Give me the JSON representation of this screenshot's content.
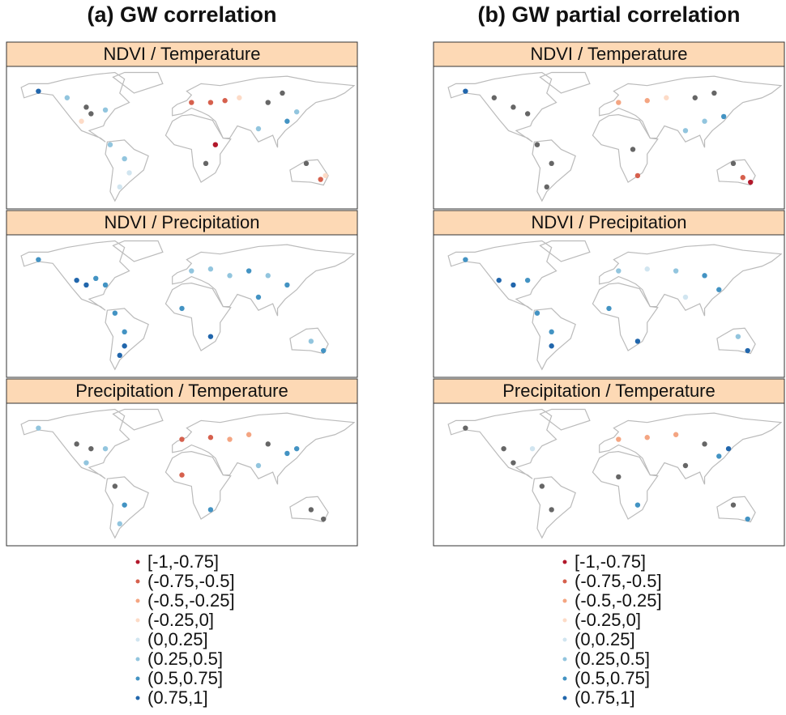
{
  "columns": [
    {
      "title": "(a) GW correlation",
      "maps": [
        {
          "label": "NDVI / Temperature",
          "points": [
            [
              -150,
              62,
              7
            ],
            [
              -120,
              55,
              5
            ],
            [
              -100,
              45,
              null
            ],
            [
              -95,
              38,
              null
            ],
            [
              -80,
              42,
              5
            ],
            [
              -105,
              30,
              3
            ],
            [
              -75,
              5,
              5
            ],
            [
              -60,
              -10,
              5
            ],
            [
              -55,
              -25,
              4
            ],
            [
              -65,
              -40,
              4
            ],
            [
              10,
              50,
              1
            ],
            [
              30,
              50,
              1
            ],
            [
              45,
              52,
              1
            ],
            [
              60,
              55,
              3
            ],
            [
              90,
              50,
              null
            ],
            [
              105,
              60,
              null
            ],
            [
              110,
              30,
              6
            ],
            [
              120,
              40,
              5
            ],
            [
              80,
              22,
              5
            ],
            [
              25,
              -15,
              null
            ],
            [
              35,
              5,
              0
            ],
            [
              145,
              -32,
              1
            ],
            [
              150,
              -28,
              3
            ],
            [
              130,
              -15,
              null
            ]
          ]
        },
        {
          "label": "NDVI / Precipitation",
          "points": [
            [
              -150,
              62,
              6
            ],
            [
              -110,
              40,
              7
            ],
            [
              -100,
              35,
              7
            ],
            [
              -90,
              42,
              6
            ],
            [
              -80,
              35,
              6
            ],
            [
              -70,
              5,
              6
            ],
            [
              -60,
              -15,
              6
            ],
            [
              -60,
              -30,
              7
            ],
            [
              -65,
              -40,
              7
            ],
            [
              10,
              50,
              5
            ],
            [
              30,
              52,
              5
            ],
            [
              50,
              45,
              5
            ],
            [
              70,
              50,
              6
            ],
            [
              90,
              45,
              5
            ],
            [
              110,
              35,
              6
            ],
            [
              80,
              22,
              6
            ],
            [
              0,
              10,
              6
            ],
            [
              30,
              -20,
              7
            ],
            [
              135,
              -25,
              5
            ],
            [
              148,
              -35,
              6
            ]
          ]
        },
        {
          "label": "Precipitation / Temperature",
          "points": [
            [
              -150,
              62,
              5
            ],
            [
              -110,
              45,
              null
            ],
            [
              -95,
              40,
              null
            ],
            [
              -80,
              40,
              5
            ],
            [
              -100,
              25,
              5
            ],
            [
              -70,
              0,
              null
            ],
            [
              -60,
              -20,
              6
            ],
            [
              -65,
              -40,
              5
            ],
            [
              0,
              50,
              1
            ],
            [
              30,
              52,
              1
            ],
            [
              50,
              50,
              2
            ],
            [
              70,
              55,
              2
            ],
            [
              90,
              45,
              null
            ],
            [
              110,
              35,
              6
            ],
            [
              120,
              40,
              6
            ],
            [
              80,
              22,
              5
            ],
            [
              0,
              12,
              1
            ],
            [
              30,
              -25,
              6
            ],
            [
              135,
              -25,
              null
            ],
            [
              148,
              -35,
              null
            ]
          ]
        }
      ]
    },
    {
      "title": "(b) GW partial correlation",
      "maps": [
        {
          "label": "NDVI / Temperature",
          "points": [
            [
              -150,
              62,
              7
            ],
            [
              -120,
              55,
              null
            ],
            [
              -100,
              45,
              null
            ],
            [
              -85,
              38,
              null
            ],
            [
              -75,
              5,
              null
            ],
            [
              -60,
              -15,
              null
            ],
            [
              -65,
              -40,
              null
            ],
            [
              10,
              50,
              2
            ],
            [
              40,
              52,
              2
            ],
            [
              60,
              55,
              3
            ],
            [
              90,
              55,
              null
            ],
            [
              110,
              60,
              null
            ],
            [
              100,
              30,
              5
            ],
            [
              120,
              35,
              6
            ],
            [
              80,
              20,
              5
            ],
            [
              25,
              0,
              null
            ],
            [
              30,
              -28,
              1
            ],
            [
              140,
              -30,
              1
            ],
            [
              148,
              -35,
              0
            ],
            [
              130,
              -15,
              null
            ]
          ]
        },
        {
          "label": "NDVI / Precipitation",
          "points": [
            [
              -150,
              62,
              6
            ],
            [
              -115,
              40,
              7
            ],
            [
              -100,
              35,
              7
            ],
            [
              -85,
              40,
              6
            ],
            [
              -75,
              5,
              6
            ],
            [
              -60,
              -15,
              6
            ],
            [
              -60,
              -30,
              7
            ],
            [
              10,
              50,
              5
            ],
            [
              40,
              52,
              4
            ],
            [
              70,
              50,
              5
            ],
            [
              100,
              45,
              6
            ],
            [
              115,
              30,
              6
            ],
            [
              80,
              22,
              4
            ],
            [
              0,
              10,
              6
            ],
            [
              30,
              -25,
              7
            ],
            [
              145,
              -35,
              7
            ],
            [
              135,
              -20,
              5
            ]
          ]
        },
        {
          "label": "Precipitation / Temperature",
          "points": [
            [
              -150,
              62,
              null
            ],
            [
              -110,
              40,
              null
            ],
            [
              -80,
              40,
              4
            ],
            [
              -100,
              25,
              null
            ],
            [
              -70,
              0,
              null
            ],
            [
              -60,
              -25,
              null
            ],
            [
              10,
              50,
              2
            ],
            [
              40,
              52,
              2
            ],
            [
              70,
              55,
              2
            ],
            [
              100,
              45,
              null
            ],
            [
              115,
              32,
              6
            ],
            [
              125,
              40,
              7
            ],
            [
              80,
              22,
              null
            ],
            [
              10,
              10,
              null
            ],
            [
              30,
              -20,
              6
            ],
            [
              145,
              -35,
              6
            ],
            [
              130,
              -20,
              null
            ]
          ]
        }
      ]
    }
  ],
  "legend": {
    "labels": [
      "[-1,-0.75]",
      "(-0.75,-0.5]",
      "(-0.5,-0.25]",
      "(-0.25,0]",
      "(0,0.25]",
      "(0.25,0.5]",
      "(0.5,0.75]",
      "(0.75,1]"
    ],
    "colors": [
      "#b2182b",
      "#d6604d",
      "#f4a582",
      "#fddbc7",
      "#d1e5f0",
      "#92c5de",
      "#4393c3",
      "#2166ac"
    ]
  },
  "other_color": "#666666"
}
